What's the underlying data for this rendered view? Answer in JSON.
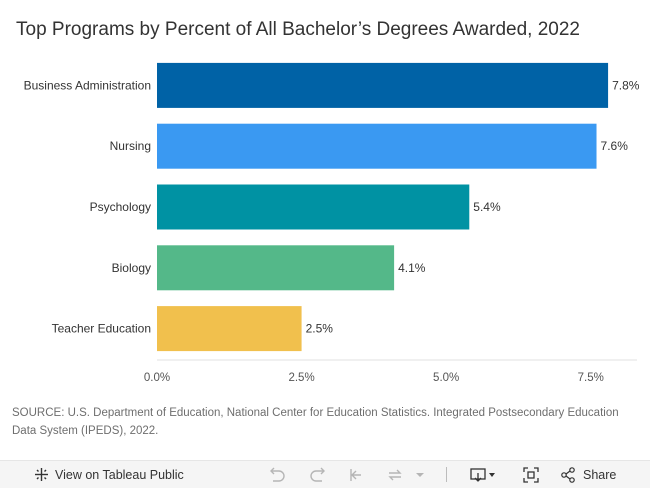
{
  "title": "Top Programs by Percent of All Bachelor’s Degrees Awarded, 2022",
  "source_note": "SOURCE: U.S. Department of Education, National Center for Education Statistics. Integrated Postsecondary Education Data System (IPEDS), 2022.",
  "chart_data": {
    "type": "bar",
    "orientation": "horizontal",
    "title": "Top Programs by Percent of All Bachelor’s Degrees Awarded, 2022",
    "categories": [
      "Business Administration",
      "Nursing",
      "Psychology",
      "Biology",
      "Teacher Education"
    ],
    "values": [
      7.8,
      7.6,
      5.4,
      4.1,
      2.5
    ],
    "value_labels": [
      "7.8%",
      "7.6%",
      "5.4%",
      "4.1%",
      "2.5%"
    ],
    "bar_colors": [
      "#0062a6",
      "#3a99f2",
      "#0092a3",
      "#54b889",
      "#f1c04d"
    ],
    "xlim": [
      0,
      8.3
    ],
    "xticks": [
      0,
      2.5,
      5.0,
      7.5
    ],
    "xtick_labels": [
      "0.0%",
      "2.5%",
      "5.0%",
      "7.5%"
    ],
    "xlabel": "",
    "ylabel": "",
    "grid": false
  },
  "toolbar": {
    "view_label": "View on Tableau Public",
    "share_label": "Share",
    "icons": [
      "tableau-logo-icon",
      "undo-icon",
      "redo-icon",
      "revert-icon",
      "refresh-icon",
      "chevron-down-icon",
      "download-icon",
      "fullscreen-icon",
      "share-icon"
    ]
  }
}
